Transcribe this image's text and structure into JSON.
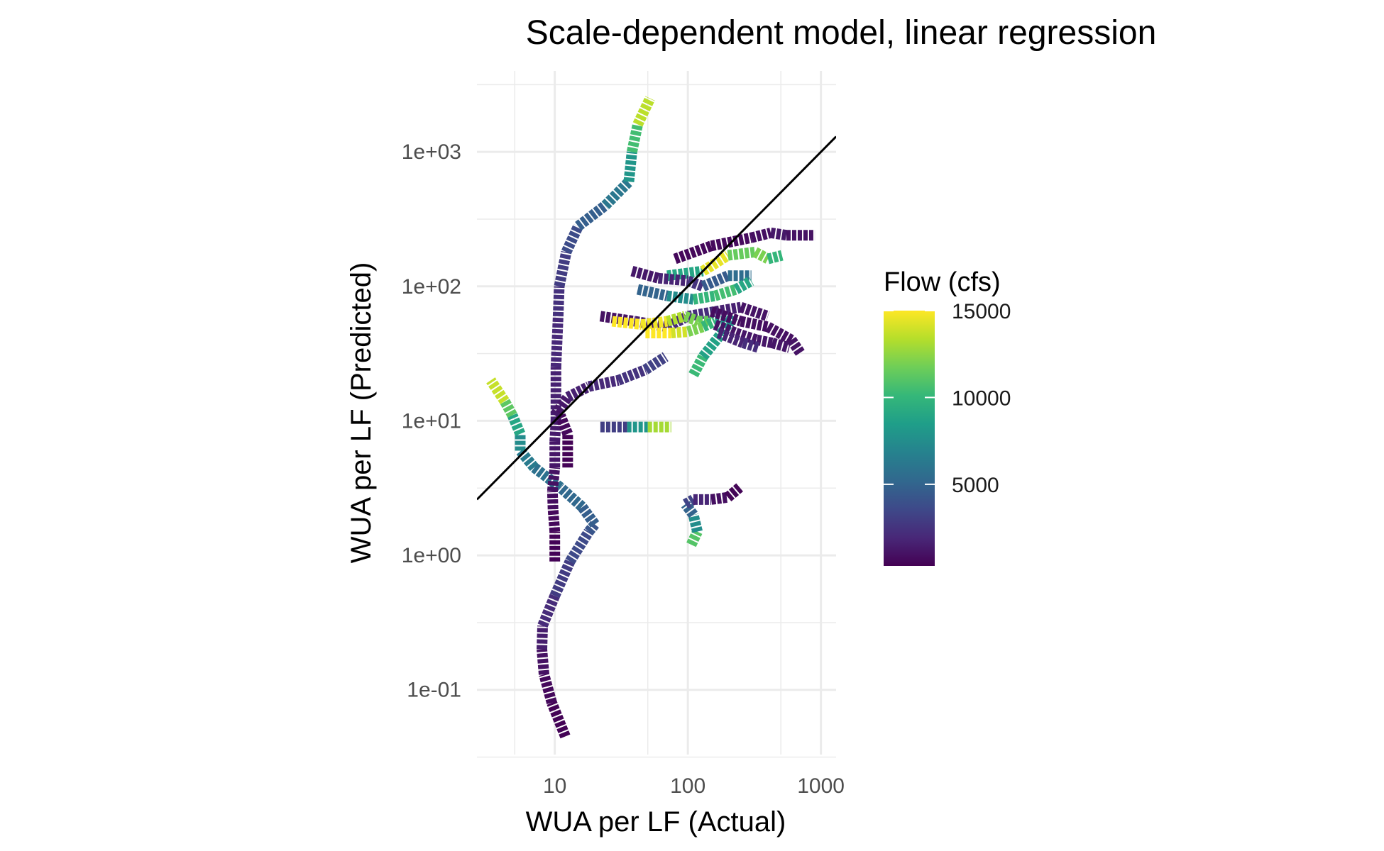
{
  "chart_data": {
    "type": "line",
    "title": "Scale-dependent model, linear regression",
    "xlabel": "WUA per LF (Actual)",
    "ylabel": "WUA per LF (Predicted)",
    "x_scale": "log10",
    "y_scale": "log10",
    "xlim": [
      2.6,
      1300
    ],
    "ylim": [
      0.033,
      4000
    ],
    "x_ticks": [
      10,
      100,
      1000
    ],
    "x_tick_labels": [
      "10",
      "100",
      "1000"
    ],
    "y_ticks": [
      0.1,
      1,
      10,
      100,
      1000
    ],
    "y_tick_labels": [
      "1e-01",
      "1e+00",
      "1e+01",
      "1e+02",
      "1e+03"
    ],
    "grid": true,
    "reference_line": "y = x",
    "color_scale": {
      "title": "Flow (cfs)",
      "palette": "viridis",
      "min": 300,
      "max": 15000,
      "ticks": [
        5000,
        10000,
        15000
      ],
      "tick_labels": [
        "5000",
        "10000",
        "15000"
      ]
    },
    "colors": {
      "viridis": [
        "#440154",
        "#482878",
        "#3e4989",
        "#31688e",
        "#26828e",
        "#1f9e89",
        "#35b779",
        "#6ece58",
        "#b5de2b",
        "#fde725"
      ],
      "reference_line": "#000000",
      "grid": "#ebebeb"
    },
    "series": [
      {
        "points": [
          [
            12,
            0.045
          ],
          [
            9.5,
            0.08
          ],
          [
            8.3,
            0.13
          ],
          [
            8.0,
            0.2
          ],
          [
            8.1,
            0.3
          ],
          [
            10,
            0.5
          ],
          [
            13,
            0.9
          ],
          [
            18,
            1.5
          ],
          [
            20,
            1.7
          ],
          [
            16,
            2.3
          ],
          [
            11,
            3.2
          ],
          [
            7,
            4.5
          ],
          [
            5.5,
            6
          ],
          [
            5.5,
            8
          ],
          [
            4.8,
            11
          ],
          [
            4.2,
            14
          ],
          [
            3.3,
            20
          ]
        ],
        "flows": [
          300,
          500,
          800,
          1200,
          1800,
          2500,
          3200,
          4000,
          4500,
          5000,
          5500,
          6000,
          6800,
          8000,
          10000,
          12500,
          15000
        ]
      },
      {
        "points": [
          [
            10,
            0.9
          ],
          [
            10,
            1.5
          ],
          [
            9.7,
            2.2
          ],
          [
            9.6,
            3
          ],
          [
            10,
            4.5
          ],
          [
            10,
            7
          ],
          [
            10.2,
            10
          ],
          [
            10.2,
            25
          ],
          [
            10.6,
            60
          ],
          [
            10.8,
            100
          ],
          [
            12.2,
            180
          ],
          [
            15,
            280
          ],
          [
            24,
            400
          ],
          [
            36,
            600
          ],
          [
            38,
            1000
          ],
          [
            42,
            1600
          ],
          [
            52,
            2500
          ]
        ],
        "flows": [
          300,
          500,
          700,
          900,
          1100,
          1300,
          1500,
          1800,
          2200,
          2600,
          3200,
          4200,
          5300,
          7000,
          9000,
          12000,
          15000
        ]
      },
      {
        "points": [
          [
            12.5,
            4.5
          ],
          [
            12.5,
            8
          ],
          [
            11,
            11
          ],
          [
            10,
            11
          ],
          [
            12.5,
            15
          ],
          [
            18,
            18
          ],
          [
            30,
            20
          ],
          [
            48,
            24
          ],
          [
            68,
            30
          ]
        ],
        "flows": [
          300,
          500,
          800,
          1100,
          1400,
          1800,
          2200,
          2800,
          3500
        ]
      },
      {
        "points": [
          [
            22,
            9
          ],
          [
            35,
            9
          ],
          [
            50,
            9
          ],
          [
            75,
            9
          ]
        ],
        "flows": [
          1000,
          5000,
          11000,
          15000
        ]
      },
      {
        "points": [
          [
            106,
            1.2
          ],
          [
            118,
            1.5
          ],
          [
            110,
            2
          ],
          [
            96,
            2.4
          ],
          [
            110,
            2.6
          ],
          [
            150,
            2.6
          ],
          [
            200,
            2.7
          ],
          [
            245,
            3.2
          ]
        ],
        "flows": [
          13000,
          9000,
          6000,
          4000,
          2500,
          1200,
          600,
          300
        ]
      },
      {
        "points": [
          [
            110,
            22
          ],
          [
            130,
            30
          ],
          [
            180,
            45
          ],
          [
            220,
            60
          ]
        ],
        "flows": [
          11000,
          9500,
          8000,
          6500
        ]
      },
      {
        "points": [
          [
            80,
            160
          ],
          [
            150,
            200
          ],
          [
            300,
            230
          ],
          [
            420,
            250
          ],
          [
            550,
            240
          ],
          [
            900,
            240
          ]
        ],
        "flows": [
          600,
          600,
          800,
          1000,
          1500,
          500
        ]
      },
      {
        "points": [
          [
            70,
            120
          ],
          [
            130,
            130
          ],
          [
            200,
            170
          ],
          [
            320,
            180
          ],
          [
            400,
            160
          ],
          [
            510,
            170
          ]
        ],
        "flows": [
          3000,
          15000,
          14000,
          9000,
          15000,
          5000
        ]
      },
      {
        "points": [
          [
            38,
            130
          ],
          [
            60,
            115
          ],
          [
            100,
            110
          ],
          [
            130,
            100
          ],
          [
            200,
            120
          ],
          [
            300,
            120
          ]
        ],
        "flows": [
          1000,
          1500,
          2000,
          3000,
          6000,
          5000
        ]
      },
      {
        "points": [
          [
            42,
            95
          ],
          [
            70,
            85
          ],
          [
            110,
            80
          ],
          [
            160,
            85
          ],
          [
            230,
            95
          ],
          [
            300,
            110
          ]
        ],
        "flows": [
          4000,
          6000,
          9000,
          11000,
          10000,
          8000
        ]
      },
      {
        "points": [
          [
            22,
            60
          ],
          [
            40,
            55
          ],
          [
            70,
            50
          ],
          [
            100,
            60
          ],
          [
            160,
            65
          ],
          [
            250,
            70
          ],
          [
            400,
            60
          ]
        ],
        "flows": [
          800,
          1200,
          1800,
          2500,
          2000,
          1200,
          900
        ]
      },
      {
        "points": [
          [
            27,
            55
          ],
          [
            45,
            52
          ],
          [
            70,
            55
          ],
          [
            95,
            60
          ],
          [
            120,
            55
          ],
          [
            150,
            55
          ]
        ],
        "flows": [
          15000,
          15000,
          14500,
          12000,
          12000,
          11000
        ]
      },
      {
        "points": [
          [
            48,
            45
          ],
          [
            75,
            45
          ],
          [
            100,
            46
          ],
          [
            130,
            50
          ],
          [
            160,
            55
          ],
          [
            220,
            55
          ]
        ],
        "flows": [
          15000,
          15000,
          13000,
          11000,
          9000,
          7000
        ]
      },
      {
        "points": [
          [
            150,
            65
          ],
          [
            250,
            55
          ],
          [
            400,
            50
          ],
          [
            600,
            40
          ],
          [
            700,
            32
          ]
        ],
        "flows": [
          800,
          800,
          900,
          1000,
          1100
        ]
      },
      {
        "points": [
          [
            160,
            52
          ],
          [
            230,
            45
          ],
          [
            330,
            40
          ],
          [
            430,
            38
          ],
          [
            580,
            35
          ]
        ],
        "flows": [
          1000,
          1100,
          1200,
          1200,
          1200
        ]
      },
      {
        "points": [
          [
            170,
            45
          ],
          [
            260,
            38
          ],
          [
            340,
            35
          ]
        ],
        "flows": [
          1500,
          2000,
          2400
        ]
      }
    ]
  }
}
